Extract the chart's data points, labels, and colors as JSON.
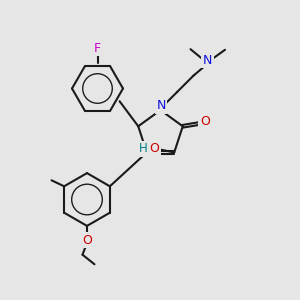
{
  "background_color": "#e6e6e6",
  "figsize": [
    3.0,
    3.0
  ],
  "dpi": 100,
  "bond_color": "#1a1a1a",
  "bond_width": 1.5,
  "atom_colors": {
    "F": "#cc00cc",
    "N": "#1010dd",
    "O": "#cc0000",
    "H": "#008080",
    "C": "#1a1a1a"
  },
  "xlim": [
    0,
    10
  ],
  "ylim": [
    0,
    10
  ]
}
